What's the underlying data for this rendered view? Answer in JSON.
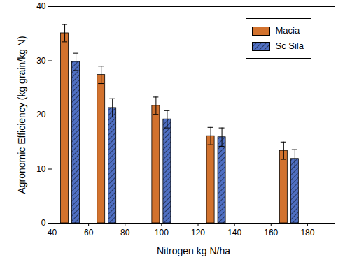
{
  "chart_data": {
    "type": "bar",
    "x_label": "Nitrogen kg N/ha",
    "y_label": "Agronomic Efficiency (kg grain/kg N)",
    "x": [
      50,
      70,
      100,
      130,
      170
    ],
    "series": [
      {
        "name": "Macia",
        "color": "#d2722e",
        "values": [
          35.1,
          27.4,
          21.7,
          16.1,
          13.4
        ],
        "errors": [
          1.6,
          1.6,
          1.6,
          1.6,
          1.6
        ]
      },
      {
        "name": "Sc Sila",
        "color": "#4f6fc2",
        "values": [
          29.8,
          21.3,
          19.2,
          15.9,
          11.9
        ],
        "errors": [
          1.6,
          1.7,
          1.6,
          1.7,
          1.7
        ]
      }
    ],
    "xlim": [
      40,
      195
    ],
    "xticks": [
      40,
      60,
      80,
      100,
      120,
      140,
      160,
      180
    ],
    "ylim": [
      0,
      40
    ],
    "yticks": [
      0,
      10,
      20,
      30,
      40
    ],
    "legend": "top-right"
  }
}
